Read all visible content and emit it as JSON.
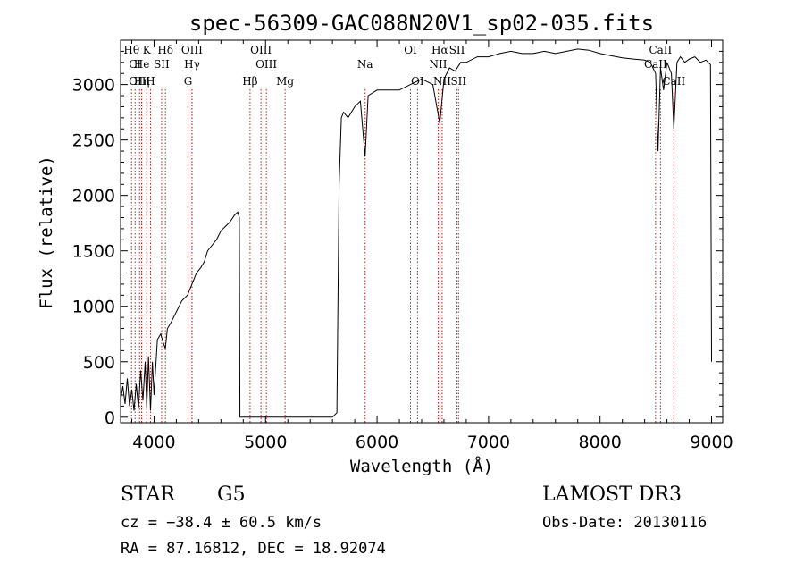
{
  "chart_data": {
    "type": "line",
    "title": "spec-56309-GAC088N20V1_sp02-035.fits",
    "xlabel": "Wavelength (Å)",
    "ylabel": "Flux (relative)",
    "xlim": [
      3700,
      9100
    ],
    "ylim": [
      -50,
      3400
    ],
    "x_ticks": [
      4000,
      5000,
      6000,
      7000,
      8000,
      9000
    ],
    "x_tick_labels": [
      "4000",
      "5000",
      "6000",
      "7000",
      "8000",
      "9000"
    ],
    "y_ticks": [
      0,
      500,
      1000,
      1500,
      2000,
      2500,
      3000
    ],
    "y_tick_labels": [
      "0",
      "500",
      "1000",
      "1500",
      "2000",
      "2500",
      "3000"
    ],
    "line_color": "#000000",
    "marker_color": "#b22222",
    "series": [
      {
        "name": "flux",
        "x": [
          3700,
          3720,
          3740,
          3760,
          3780,
          3800,
          3820,
          3840,
          3860,
          3880,
          3900,
          3920,
          3935,
          3950,
          3968,
          3985,
          4000,
          4030,
          4060,
          4080,
          4101,
          4120,
          4150,
          4200,
          4250,
          4300,
          4340,
          4380,
          4420,
          4450,
          4480,
          4520,
          4560,
          4600,
          4640,
          4680,
          4720,
          4750,
          4765,
          4770,
          4780,
          5000,
          5300,
          5600,
          5640,
          5660,
          5680,
          5700,
          5740,
          5800,
          5850,
          5893,
          5920,
          6000,
          6100,
          6200,
          6300,
          6400,
          6500,
          6563,
          6600,
          6650,
          6700,
          6750,
          6800,
          6900,
          7000,
          7100,
          7200,
          7300,
          7400,
          7500,
          7600,
          7700,
          7800,
          7900,
          8000,
          8100,
          8200,
          8300,
          8400,
          8450,
          8498,
          8520,
          8542,
          8570,
          8600,
          8640,
          8662,
          8690,
          8720,
          8760,
          8800,
          8850,
          8900,
          8950,
          8990,
          9000
        ],
        "y": [
          150,
          280,
          120,
          350,
          100,
          250,
          60,
          300,
          80,
          420,
          150,
          500,
          80,
          550,
          60,
          500,
          200,
          700,
          750,
          680,
          620,
          800,
          850,
          950,
          1050,
          1100,
          1200,
          1300,
          1350,
          1400,
          1500,
          1550,
          1600,
          1680,
          1720,
          1760,
          1820,
          1850,
          1800,
          0,
          0,
          0,
          0,
          0,
          40,
          2100,
          2700,
          2750,
          2700,
          2800,
          2850,
          2350,
          2900,
          2950,
          2950,
          2950,
          3000,
          3050,
          3000,
          2650,
          3050,
          3150,
          3120,
          3200,
          3200,
          3250,
          3250,
          3280,
          3300,
          3280,
          3280,
          3300,
          3280,
          3300,
          3320,
          3310,
          3280,
          3260,
          3240,
          3230,
          3220,
          3200,
          3100,
          2400,
          3150,
          2950,
          3200,
          3100,
          2600,
          3200,
          3250,
          3200,
          3230,
          3250,
          3200,
          3220,
          3180,
          500
        ]
      }
    ],
    "line_markers": [
      {
        "name": "Hθ",
        "x": 3798,
        "row": 0
      },
      {
        "name": "CI",
        "x": 3830,
        "row": 1
      },
      {
        "name": "OIII",
        "x": 3870,
        "row": 2
      },
      {
        "name": "Hη",
        "x": 3889,
        "row": 2
      },
      {
        "name": "He",
        "x": 3889,
        "row": 1
      },
      {
        "name": "K",
        "x": 3934,
        "row": 0
      },
      {
        "name": "SII",
        "x": 4068,
        "row": 1
      },
      {
        "name": "H",
        "x": 3968,
        "row": 2
      },
      {
        "name": "Hδ",
        "x": 4102,
        "row": 0
      },
      {
        "name": "OIII",
        "x": 4340,
        "row": 0
      },
      {
        "name": "Hγ",
        "x": 4341,
        "row": 1
      },
      {
        "name": "G",
        "x": 4305,
        "row": 2
      },
      {
        "name": "OIII",
        "x": 4959,
        "row": 0
      },
      {
        "name": "OIII",
        "x": 5007,
        "row": 1
      },
      {
        "name": "Hβ",
        "x": 4861,
        "row": 2
      },
      {
        "name": "Mg",
        "x": 5175,
        "row": 2
      },
      {
        "name": "Na",
        "x": 5893,
        "row": 1
      },
      {
        "name": "OI",
        "x": 6300,
        "row": 0
      },
      {
        "name": "OI",
        "x": 6363,
        "row": 2
      },
      {
        "name": "Hα",
        "x": 6563,
        "row": 0
      },
      {
        "name": "NII",
        "x": 6548,
        "row": 1
      },
      {
        "name": "NII",
        "x": 6584,
        "row": 2
      },
      {
        "name": "SII",
        "x": 6717,
        "row": 0
      },
      {
        "name": "SII",
        "x": 6731,
        "row": 2
      },
      {
        "name": "CaII",
        "x": 8498,
        "row": 1
      },
      {
        "name": "CaII",
        "x": 8542,
        "row": 0
      },
      {
        "name": "CaII",
        "x": 8662,
        "row": 2
      }
    ]
  },
  "info": {
    "object_class": "STAR",
    "subclass": "G5",
    "survey": "LAMOST DR3",
    "redshift_line": "cz = −38.4 ± 60.5 km/s",
    "obs_date": "Obs-Date: 20130116",
    "coords_line": "RA =  87.16812, DEC =  18.92074"
  }
}
